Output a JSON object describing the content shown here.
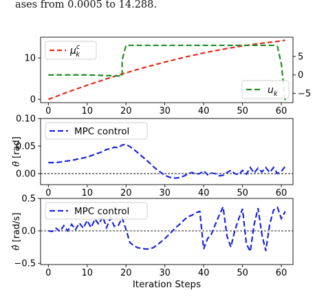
{
  "caption": {
    "text_prefix": "ases from",
    "value_from": "0.0005",
    "word_to": "to",
    "value_to": "14.288."
  },
  "chart_data": [
    {
      "type": "line",
      "legend_placement": "top-left and bottom-right",
      "xlim": [
        -2,
        63
      ],
      "ylim_left": [
        -0.8,
        15.0
      ],
      "ylim_right": [
        -7.5,
        10.2
      ],
      "xticks": [
        0,
        10,
        20,
        30,
        40,
        50,
        60
      ],
      "yticks_left": [
        0,
        10
      ],
      "yticks_right": [
        -5,
        0,
        5
      ],
      "grid": false,
      "series": [
        {
          "name": "μ_k^c",
          "name_main": "μ",
          "name_sub": "k",
          "name_sup": "c",
          "axis": "left",
          "color": "#e8291c",
          "dash": "dashed",
          "x": [
            0,
            5,
            10,
            15,
            20,
            25,
            30,
            35,
            40,
            45,
            50,
            55,
            60,
            61
          ],
          "y": [
            0.0005,
            1.75,
            3.4,
            4.95,
            6.4,
            7.75,
            9.0,
            10.15,
            11.2,
            12.1,
            12.9,
            13.55,
            14.1,
            14.288
          ]
        },
        {
          "name": "u_k",
          "name_main": "u",
          "name_sub": "k",
          "axis": "right",
          "color": "#1f8c1f",
          "dash": "dashed",
          "x": [
            0,
            10,
            19,
            19,
            20,
            58,
            59,
            60,
            61
          ],
          "y": [
            0,
            0,
            -0.3,
            4,
            8,
            8,
            7.7,
            3,
            -7
          ]
        }
      ]
    },
    {
      "type": "line",
      "ylabel": "θ̄ [rad]",
      "ylabel_main": "θ",
      "ylabel_unit": "[rad]",
      "xlim": [
        -2,
        63
      ],
      "ylim": [
        -0.02,
        0.1
      ],
      "xticks": [
        0,
        10,
        20,
        30,
        40,
        50,
        60
      ],
      "yticks": [
        "0.00",
        "0.05",
        "0.10"
      ],
      "ytick_values": [
        0,
        0.05,
        0.1
      ],
      "reference_line": 0,
      "legend_placement": "top-left",
      "series": [
        {
          "name": "MPC control",
          "color": "#1a23e0",
          "dash": "dashed",
          "x": [
            0,
            2,
            4,
            6,
            8,
            10,
            12,
            14,
            15,
            16,
            17,
            18,
            19,
            20,
            21,
            22,
            23,
            24,
            25,
            26,
            27,
            28,
            29,
            30,
            31,
            32,
            33,
            34,
            35,
            36,
            37,
            38,
            39,
            40,
            41,
            42,
            43,
            44,
            45,
            46,
            47,
            48,
            49,
            50,
            51,
            52,
            53,
            54,
            55,
            56,
            57,
            58,
            59,
            60,
            61
          ],
          "y": [
            0.02,
            0.02,
            0.022,
            0.024,
            0.027,
            0.03,
            0.035,
            0.04,
            0.044,
            0.045,
            0.048,
            0.047,
            0.052,
            0.053,
            0.049,
            0.044,
            0.038,
            0.032,
            0.026,
            0.02,
            0.013,
            0.007,
            0.002,
            -0.003,
            -0.006,
            -0.008,
            -0.008,
            -0.007,
            -0.004,
            0.0,
            0.002,
            -0.001,
            0.0,
            0.005,
            -0.002,
            0.001,
            0.0,
            -0.004,
            -0.003,
            0.002,
            0.006,
            0.0,
            -0.002,
            0.006,
            -0.001,
            0.011,
            0.001,
            0.01,
            0.003,
            0.011,
            0.002,
            0.011,
            0.0,
            0.004,
            0.013
          ]
        }
      ]
    },
    {
      "type": "line",
      "ylabel": "θ̇̄ [rad/s]",
      "ylabel_main": "θ",
      "ylabel_unit": "[rad/s]",
      "xlabel": "Iteration Steps",
      "xlim": [
        -2,
        63
      ],
      "ylim": [
        -0.52,
        0.5
      ],
      "xticks": [
        0,
        10,
        20,
        30,
        40,
        50,
        60
      ],
      "yticks": [
        "-0.5",
        "0.0",
        "0.5"
      ],
      "ytick_values": [
        -0.5,
        0,
        0.5
      ],
      "reference_line": 0,
      "legend_placement": "top-left",
      "series": [
        {
          "name": "MPC control",
          "color": "#1a23e0",
          "dash": "dashed",
          "x": [
            0,
            1,
            2,
            3,
            4,
            5,
            6,
            7,
            8,
            9,
            10,
            11,
            12,
            13,
            14,
            15,
            16,
            17,
            18,
            19,
            20,
            21,
            22,
            23,
            24,
            25,
            26,
            27,
            28,
            29,
            30,
            31,
            32,
            33,
            34,
            35,
            36,
            37,
            38,
            39,
            40,
            41,
            42,
            43,
            44,
            45,
            46,
            47,
            48,
            49,
            50,
            51,
            52,
            53,
            54,
            55,
            56,
            57,
            58,
            59,
            60,
            61
          ],
          "y": [
            0.0,
            -0.01,
            0.04,
            -0.01,
            0.08,
            0.0,
            0.1,
            0.02,
            0.12,
            0.04,
            0.16,
            0.05,
            0.18,
            0.1,
            0.22,
            0.05,
            0.2,
            0.07,
            0.08,
            0.2,
            0.02,
            -0.18,
            -0.23,
            -0.26,
            -0.27,
            -0.28,
            -0.28,
            -0.26,
            -0.22,
            -0.17,
            -0.12,
            -0.06,
            0.0,
            0.06,
            0.11,
            0.17,
            0.22,
            0.24,
            0.28,
            0.3,
            -0.28,
            -0.12,
            -0.05,
            0.1,
            0.24,
            0.37,
            -0.08,
            -0.25,
            0.0,
            0.18,
            0.34,
            -0.2,
            -0.32,
            0.1,
            0.35,
            -0.06,
            -0.31,
            0.1,
            0.32,
            0.36,
            0.19,
            0.3
          ]
        }
      ]
    }
  ]
}
